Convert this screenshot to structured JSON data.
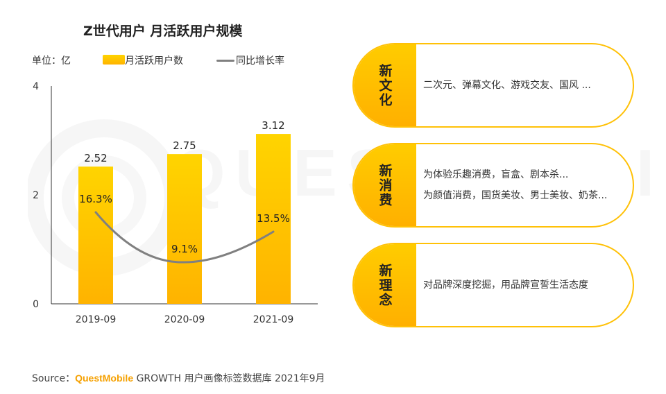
{
  "watermark": "QUESTMOBILE",
  "title": "Z世代用户 月活跃用户规模",
  "unit_label": "单位：亿",
  "legend": {
    "bar_label": "月活跃用户数",
    "line_label": "同比增长率"
  },
  "colors": {
    "bar_top": "#ffd400",
    "bar_bottom": "#ffb300",
    "line": "#808080",
    "accent": "#ffc107",
    "brand": "#f5a000"
  },
  "chart_data": {
    "type": "bar",
    "title": "Z世代用户 月活跃用户规模",
    "categories": [
      "2019-09",
      "2020-09",
      "2021-09"
    ],
    "series": [
      {
        "name": "月活跃用户数",
        "type": "bar",
        "values": [
          2.52,
          2.75,
          3.12
        ],
        "labels": [
          "2.52",
          "2.75",
          "3.12"
        ]
      },
      {
        "name": "同比增长率",
        "type": "line",
        "values": [
          16.3,
          9.1,
          13.5
        ],
        "labels": [
          "16.3%",
          "9.1%",
          "13.5%"
        ],
        "axis": "secondary"
      }
    ],
    "ylim": [
      0,
      4
    ],
    "yticks": [
      0,
      2,
      4
    ],
    "ylabel": "单位：亿",
    "xlabel": "",
    "grid": false
  },
  "cards": [
    {
      "tag": "新文化",
      "lines": [
        "二次元、弹幕文化、游戏交友、国风 ..."
      ]
    },
    {
      "tag": "新消费",
      "lines": [
        "为体验乐趣消费，盲盒、剧本杀...",
        "为颜值消费，国货美妆、男士美妆、奶茶..."
      ]
    },
    {
      "tag": "新理念",
      "lines": [
        "对品牌深度挖掘，用品牌宣誓生活态度"
      ]
    }
  ],
  "source": {
    "prefix": "Source：",
    "brand": "QuestMobile",
    "text": "GROWTH 用户画像标签数据库 2021年9月"
  }
}
